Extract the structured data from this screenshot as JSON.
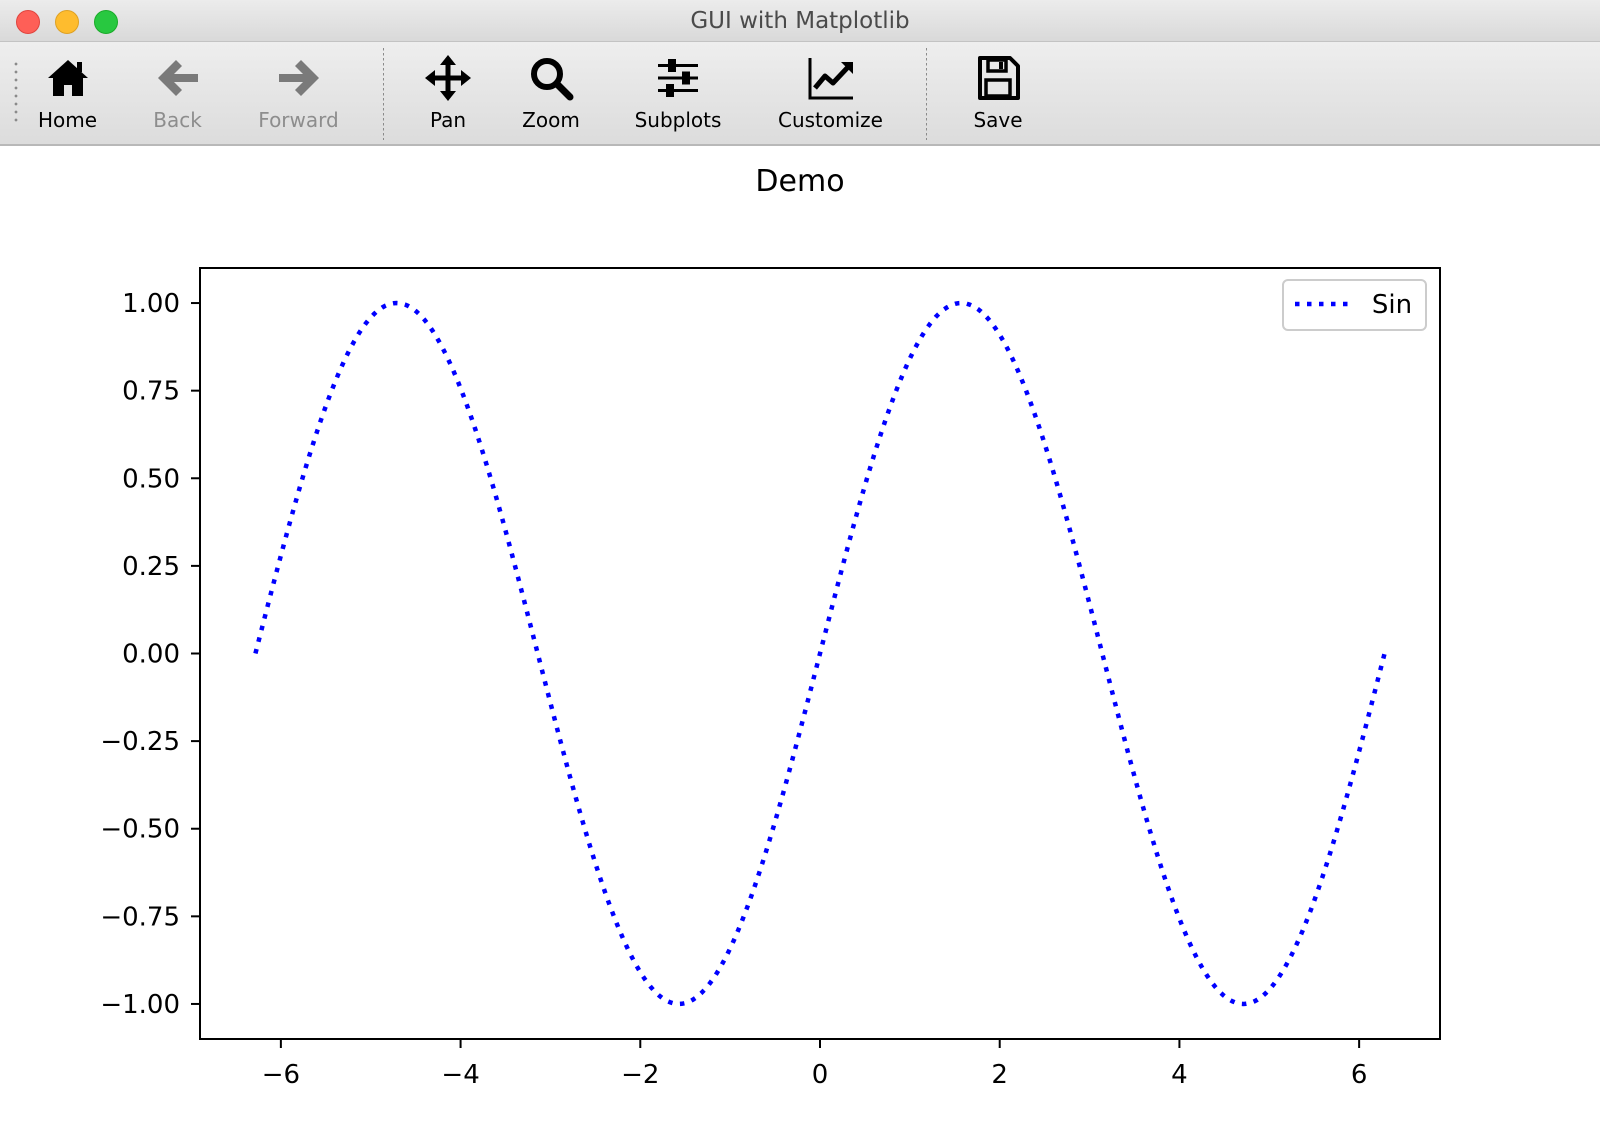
{
  "window": {
    "title": "GUI with Matplotlib"
  },
  "toolbar": {
    "buttons": [
      {
        "id": "home",
        "label": "Home",
        "icon": "home-icon",
        "enabled": true
      },
      {
        "id": "back",
        "label": "Back",
        "icon": "arrow-left-icon",
        "enabled": false
      },
      {
        "id": "forward",
        "label": "Forward",
        "icon": "arrow-right-icon",
        "enabled": false
      },
      {
        "id": "pan",
        "label": "Pan",
        "icon": "move-arrows-icon",
        "enabled": true
      },
      {
        "id": "zoom",
        "label": "Zoom",
        "icon": "magnifier-icon",
        "enabled": true
      },
      {
        "id": "subplots",
        "label": "Subplots",
        "icon": "sliders-icon",
        "enabled": true
      },
      {
        "id": "customize",
        "label": "Customize",
        "icon": "line-chart-icon",
        "enabled": true
      },
      {
        "id": "save",
        "label": "Save",
        "icon": "floppy-disk-icon",
        "enabled": true
      }
    ]
  },
  "chart_data": {
    "type": "line",
    "title": "Demo",
    "xlabel": "",
    "ylabel": "",
    "function": "sin(x)",
    "x_range": [
      -6.283,
      6.283
    ],
    "xlim": [
      -6.9,
      6.9
    ],
    "ylim": [
      -1.1,
      1.1
    ],
    "xticks": [
      -6,
      -4,
      -2,
      0,
      2,
      4,
      6
    ],
    "xtick_labels": [
      "−6",
      "−4",
      "−2",
      "0",
      "2",
      "4",
      "6"
    ],
    "yticks": [
      -1.0,
      -0.75,
      -0.5,
      -0.25,
      0.0,
      0.25,
      0.5,
      0.75,
      1.0
    ],
    "ytick_labels": [
      "−1.00",
      "−0.75",
      "−0.50",
      "−0.25",
      "0.00",
      "0.25",
      "0.50",
      "0.75",
      "1.00"
    ],
    "grid": false,
    "legend_position": "top-right",
    "series": [
      {
        "name": "Sin",
        "color": "#0000ff",
        "linestyle": "dotted",
        "x": [
          -6.283,
          -6.0,
          -5.5,
          -5.0,
          -4.712,
          -4.5,
          -4.0,
          -3.5,
          -3.0,
          -2.5,
          -2.0,
          -1.571,
          -1.0,
          -0.5,
          0.0,
          0.5,
          1.0,
          1.571,
          2.0,
          2.5,
          3.0,
          3.5,
          4.0,
          4.5,
          4.712,
          5.0,
          5.5,
          6.0,
          6.283
        ],
        "y": [
          0.0,
          0.279,
          0.706,
          0.959,
          1.0,
          0.978,
          0.757,
          0.351,
          -0.141,
          -0.598,
          -0.909,
          -1.0,
          -0.841,
          -0.479,
          0.0,
          0.479,
          0.841,
          1.0,
          0.909,
          0.598,
          0.141,
          -0.351,
          -0.757,
          -0.978,
          -1.0,
          -0.959,
          -0.706,
          -0.279,
          0.0
        ]
      }
    ]
  }
}
